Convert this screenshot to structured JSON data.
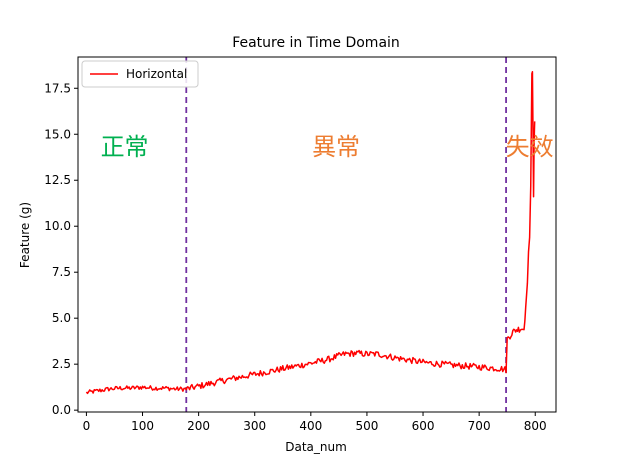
{
  "chart_data": {
    "type": "line",
    "title": "Feature in Time Domain",
    "xlabel": "Data_num",
    "ylabel": "Feature (g)",
    "xlim": [
      -15,
      837
    ],
    "ylim": [
      -0.1,
      19.2
    ],
    "xticks": [
      0,
      100,
      200,
      300,
      400,
      500,
      600,
      700,
      800
    ],
    "yticks": [
      0.0,
      2.5,
      5.0,
      7.5,
      10.0,
      12.5,
      15.0,
      17.5
    ],
    "ytick_labels": [
      "0.0",
      "2.5",
      "5.0",
      "7.5",
      "10.0",
      "12.5",
      "15.0",
      "17.5"
    ],
    "grid": false,
    "legend_position": "top-left",
    "series": [
      {
        "name": "Horizontal",
        "color": "#ff0000",
        "points": [
          [
            0,
            0.95
          ],
          [
            20,
            1.05
          ],
          [
            40,
            1.15
          ],
          [
            60,
            1.2
          ],
          [
            80,
            1.2
          ],
          [
            100,
            1.25
          ],
          [
            120,
            1.2
          ],
          [
            140,
            1.2
          ],
          [
            160,
            1.15
          ],
          [
            178,
            1.15
          ],
          [
            200,
            1.3
          ],
          [
            250,
            1.65
          ],
          [
            300,
            1.95
          ],
          [
            350,
            2.25
          ],
          [
            400,
            2.55
          ],
          [
            430,
            2.75
          ],
          [
            460,
            3.05
          ],
          [
            480,
            3.1
          ],
          [
            500,
            3.05
          ],
          [
            520,
            3.05
          ],
          [
            550,
            2.85
          ],
          [
            600,
            2.6
          ],
          [
            650,
            2.45
          ],
          [
            700,
            2.35
          ],
          [
            740,
            2.25
          ],
          [
            748,
            2.2
          ],
          [
            750,
            3.85
          ],
          [
            755,
            4.05
          ],
          [
            760,
            4.25
          ],
          [
            765,
            4.35
          ],
          [
            770,
            4.4
          ],
          [
            775,
            4.45
          ],
          [
            780,
            4.4
          ],
          [
            783,
            5.6
          ],
          [
            786,
            6.9
          ],
          [
            788,
            8.6
          ],
          [
            790,
            9.4
          ],
          [
            792,
            12.2
          ],
          [
            793,
            15.3
          ],
          [
            794,
            18.3
          ],
          [
            795,
            18.4
          ],
          [
            796,
            15.2
          ],
          [
            797,
            11.6
          ],
          [
            798,
            14.6
          ],
          [
            799,
            15.7
          ]
        ]
      }
    ],
    "vlines": [
      {
        "x": 178,
        "color": "#7030a0",
        "style": "dashed"
      },
      {
        "x": 748,
        "color": "#7030a0",
        "style": "dashed"
      }
    ],
    "annotations": [
      {
        "text": "正常",
        "x": 68,
        "y": 14.3,
        "color": "#00b050"
      },
      {
        "text": "異常",
        "x": 445,
        "y": 14.3,
        "color": "#ed7d31"
      },
      {
        "text": "失效",
        "x": 790,
        "y": 14.3,
        "color": "#ed7d31"
      }
    ]
  }
}
